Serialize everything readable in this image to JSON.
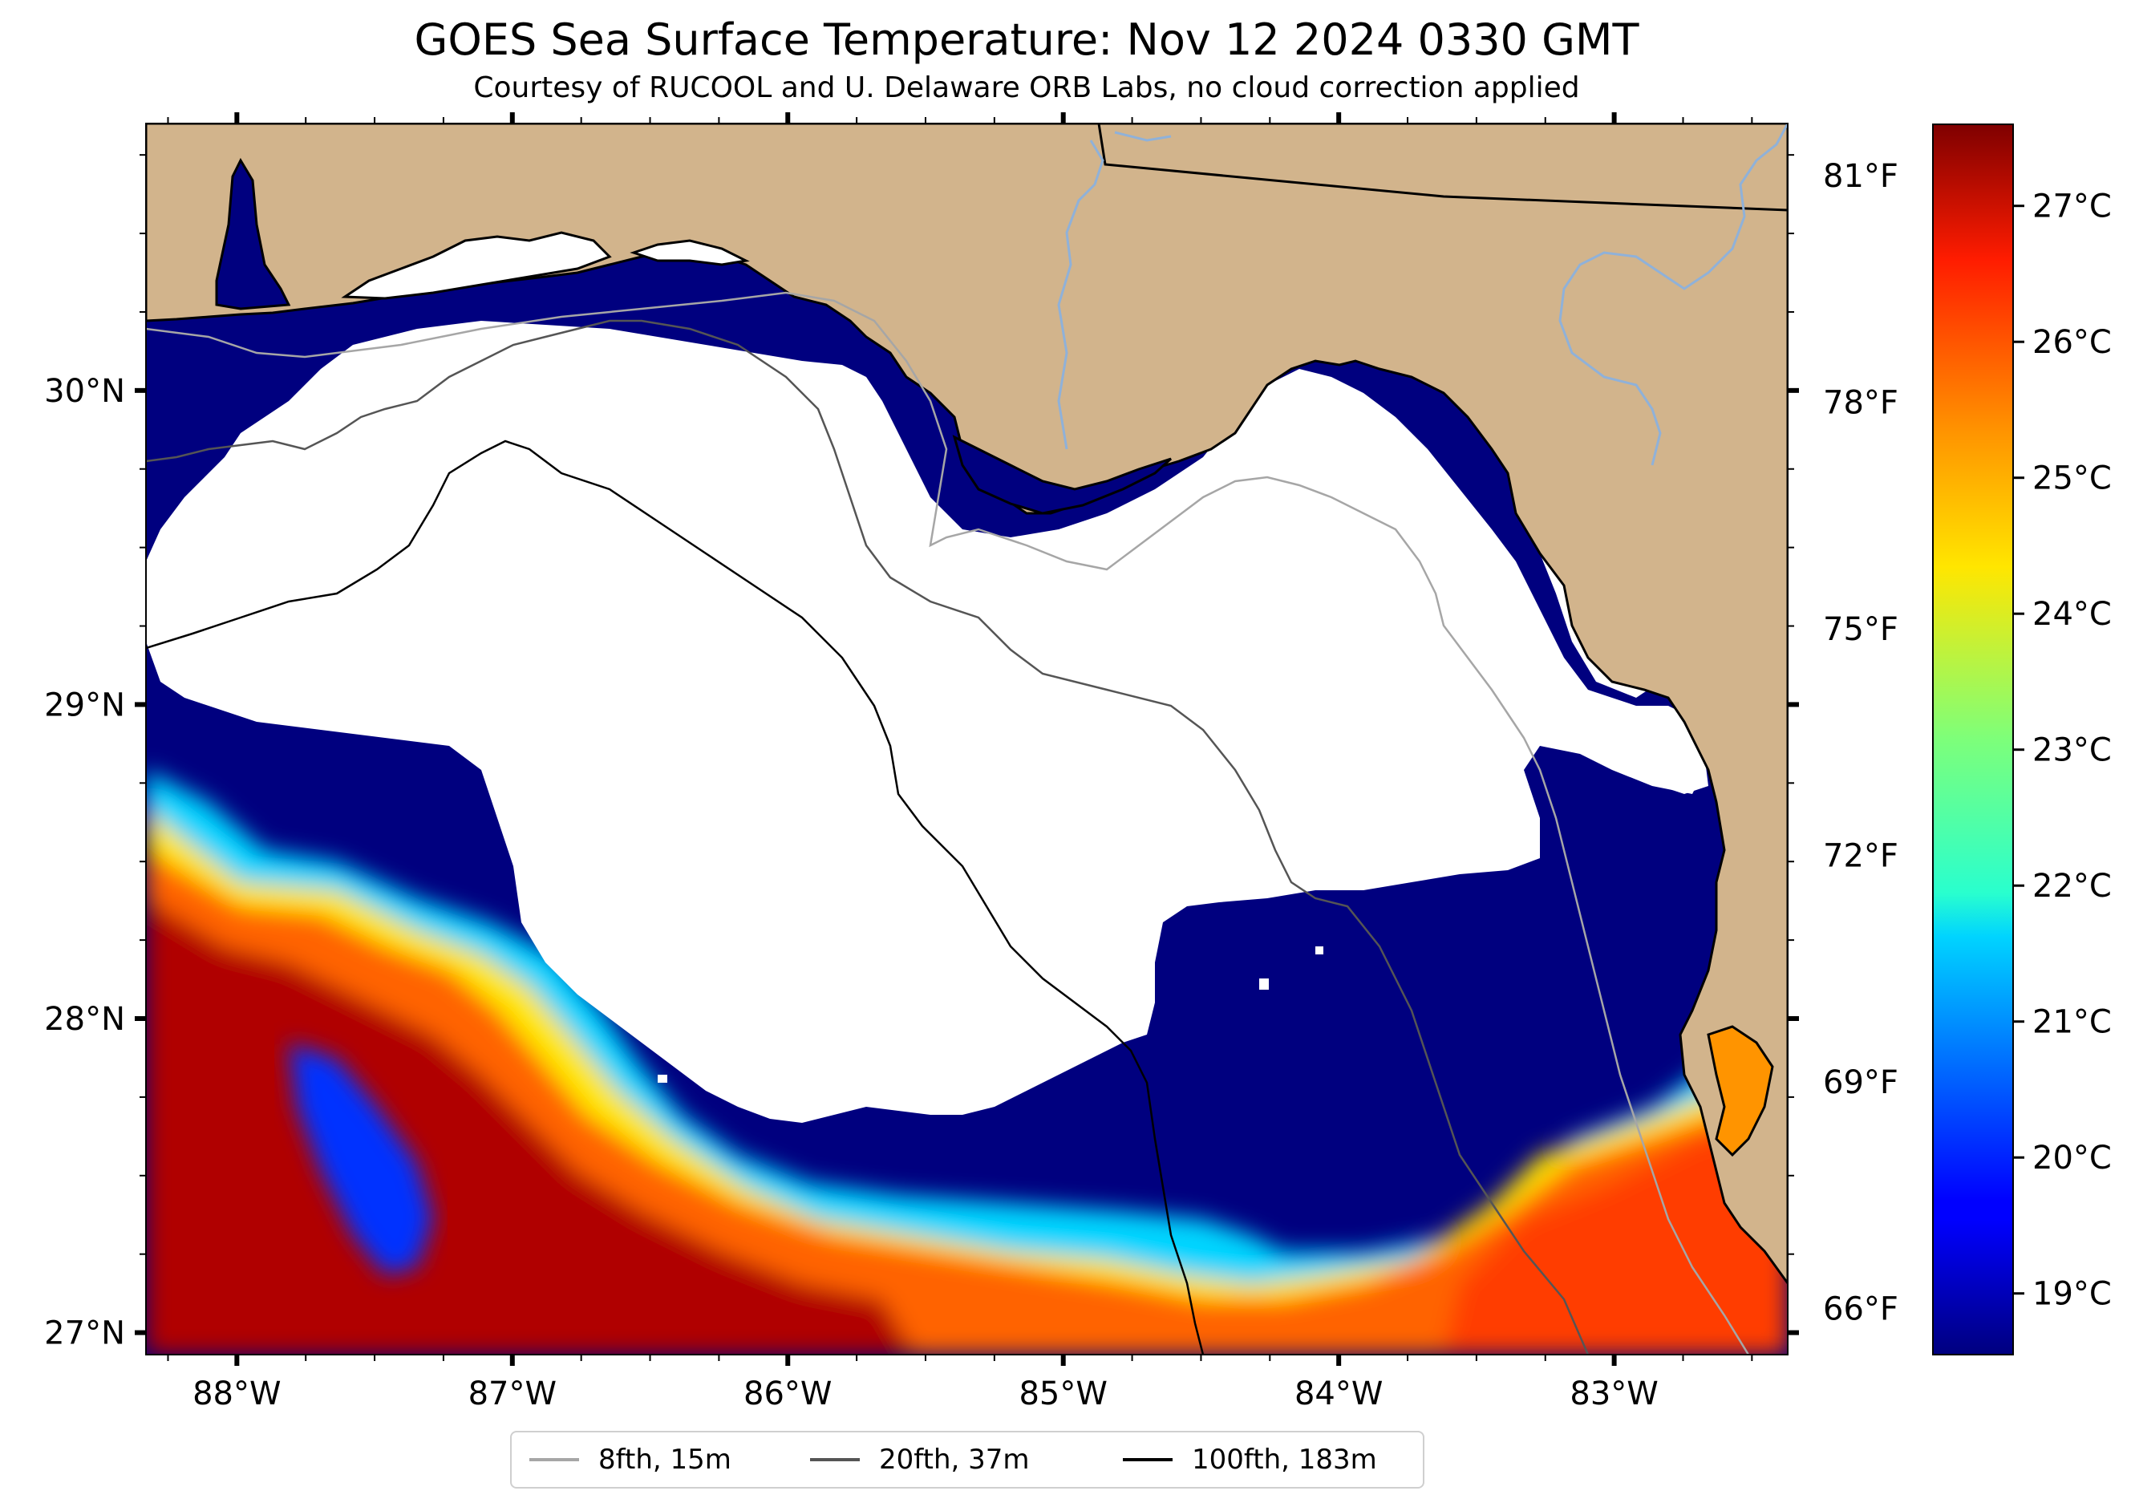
{
  "title": "GOES Sea Surface Temperature: Nov 12 2024 0330 GMT",
  "subtitle": "Courtesy of RUCOOL and U. Delaware ORB Labs, no cloud correction applied",
  "map": {
    "lon_range": [
      -88.33,
      -82.37
    ],
    "lat_range": [
      26.93,
      30.85
    ],
    "lon_ticks": [
      {
        "value": -88,
        "label": "88°W"
      },
      {
        "value": -87,
        "label": "87°W"
      },
      {
        "value": -86,
        "label": "86°W"
      },
      {
        "value": -85,
        "label": "85°W"
      },
      {
        "value": -84,
        "label": "84°W"
      },
      {
        "value": -83,
        "label": "83°W"
      }
    ],
    "lat_ticks": [
      {
        "value": 30,
        "label": "30°N"
      },
      {
        "value": 29,
        "label": "29°N"
      },
      {
        "value": 28,
        "label": "28°N"
      },
      {
        "value": 27,
        "label": "27°N"
      }
    ],
    "fahrenheit_ticks": [
      {
        "value": 81,
        "label": "81°F"
      },
      {
        "value": 78,
        "label": "78°F"
      },
      {
        "value": 75,
        "label": "75°F"
      },
      {
        "value": 72,
        "label": "72°F"
      },
      {
        "value": 69,
        "label": "69°F"
      },
      {
        "value": 66,
        "label": "66°F"
      }
    ],
    "colors": {
      "land": "#d2b48c",
      "cloud": "#ffffff",
      "coast": "#000000",
      "river": "#8fb1d9",
      "isobath_8fth": "#a6a6a6",
      "isobath_20fth": "#555555",
      "isobath_100fth": "#000000"
    }
  },
  "colorbar": {
    "celsius_range": [
      18.55,
      27.6
    ],
    "celsius_ticks": [
      {
        "value": 27,
        "label": "27°C"
      },
      {
        "value": 26,
        "label": "26°C"
      },
      {
        "value": 25,
        "label": "25°C"
      },
      {
        "value": 24,
        "label": "24°C"
      },
      {
        "value": 23,
        "label": "23°C"
      },
      {
        "value": 22,
        "label": "22°C"
      },
      {
        "value": 21,
        "label": "21°C"
      },
      {
        "value": 20,
        "label": "20°C"
      },
      {
        "value": 19,
        "label": "19°C"
      }
    ],
    "colormap": "jet"
  },
  "legend": [
    {
      "label": "8fth, 15m",
      "color": "#a6a6a6"
    },
    {
      "label": "20fth, 37m",
      "color": "#555555"
    },
    {
      "label": "100fth, 183m",
      "color": "#000000"
    }
  ]
}
